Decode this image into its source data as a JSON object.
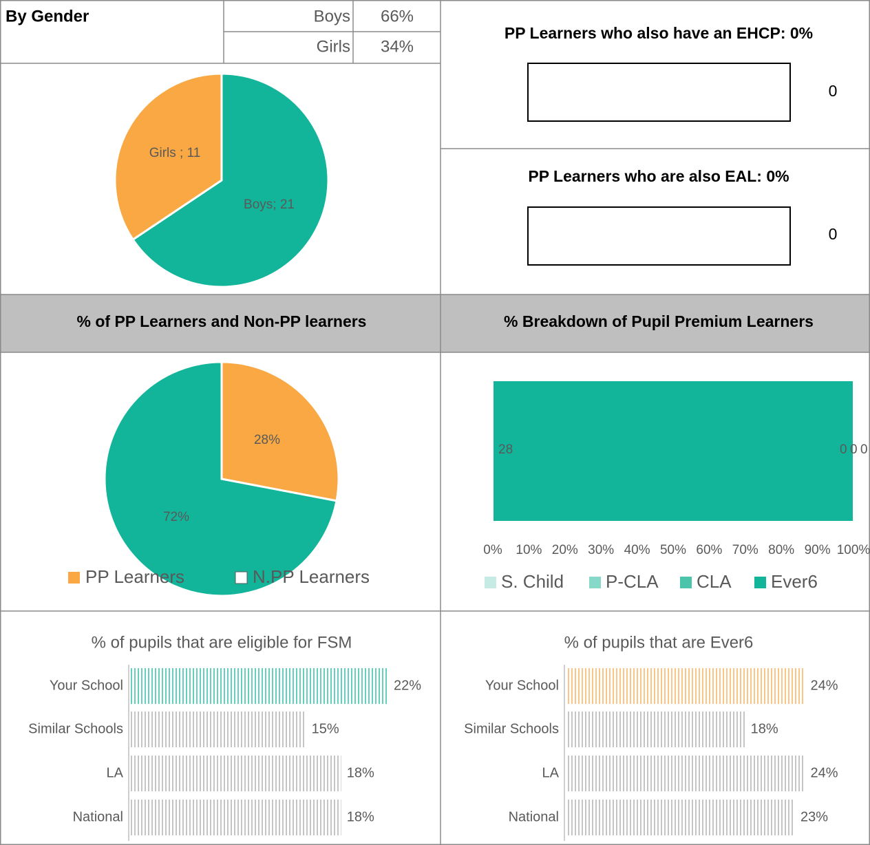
{
  "gender_table": {
    "title": "By Gender",
    "rows": [
      [
        "Boys",
        "66%"
      ],
      [
        "Girls",
        "34%"
      ]
    ]
  },
  "ehcp": {
    "title": "PP Learners who also have an EHCP: 0%",
    "value": "0"
  },
  "eal": {
    "title": "PP Learners who are also EAL: 0%",
    "value": "0"
  },
  "headers": [
    "% of PP Learners and Non-PP learners",
    "% Breakdown of Pupil Premium Learners"
  ],
  "chart_data": [
    {
      "type": "pie",
      "categories": [
        "Boys",
        "Girls"
      ],
      "values": [
        21,
        11
      ],
      "value_labels": [
        "Boys; 21",
        "Girls ; 11"
      ],
      "colors": [
        "#12b59a",
        "#f9a843"
      ]
    },
    {
      "type": "pie",
      "categories": [
        "PP Learners",
        "N.PP Learners"
      ],
      "values": [
        28,
        72
      ],
      "value_labels": [
        "28%",
        "72%"
      ],
      "colors": [
        "#f9a843",
        "#12b59a"
      ],
      "legend_colors": [
        "#f9a843",
        "#ffffff"
      ],
      "legend": "bottom"
    },
    {
      "type": "stacked_bar_h",
      "series": [
        {
          "name": "Ever6",
          "color": "#12b59a",
          "values": [
            28
          ]
        },
        {
          "name": "CLA",
          "color": "#4cc4ac",
          "values": [
            0
          ]
        },
        {
          "name": "P-CLA",
          "color": "#86d9c8",
          "values": [
            0
          ]
        },
        {
          "name": "S. Child",
          "color": "#c5ebe4",
          "values": [
            0
          ]
        }
      ],
      "xlim": [
        0,
        100
      ],
      "xticks": [
        {
          "value": 0,
          "label": "0%"
        },
        {
          "value": 10,
          "label": "10%"
        },
        {
          "value": 20,
          "label": "20%"
        },
        {
          "value": 30,
          "label": "30%"
        },
        {
          "value": 40,
          "label": "40%"
        },
        {
          "value": 50,
          "label": "50%"
        },
        {
          "value": 60,
          "label": "60%"
        },
        {
          "value": 70,
          "label": "70%"
        },
        {
          "value": 80,
          "label": "80%"
        },
        {
          "value": 90,
          "label": "90%"
        },
        {
          "value": 100,
          "label": "100%"
        }
      ],
      "legend": "bottom"
    },
    {
      "type": "bar_h",
      "title": "% of pupils that are eligible for FSM",
      "categories": [
        "Your School",
        "Similar Schools",
        "LA",
        "National"
      ],
      "values": [
        22,
        15,
        18,
        18
      ],
      "value_labels": [
        "22%",
        "15%",
        "18%",
        "18%"
      ],
      "colors": [
        "#12b59a",
        "#a6a6a6",
        "#a6a6a6",
        "#a6a6a6"
      ],
      "xlim": [
        0,
        23
      ]
    },
    {
      "type": "bar_h",
      "title": "% of pupils that are Ever6",
      "categories": [
        "Your School",
        "Similar Schools",
        "LA",
        "National"
      ],
      "values": [
        24,
        18,
        24,
        23
      ],
      "value_labels": [
        "24%",
        "18%",
        "24%",
        "23%"
      ],
      "colors": [
        "#f9a843",
        "#a6a6a6",
        "#a6a6a6",
        "#a6a6a6"
      ],
      "xlim": [
        0,
        25
      ]
    }
  ]
}
